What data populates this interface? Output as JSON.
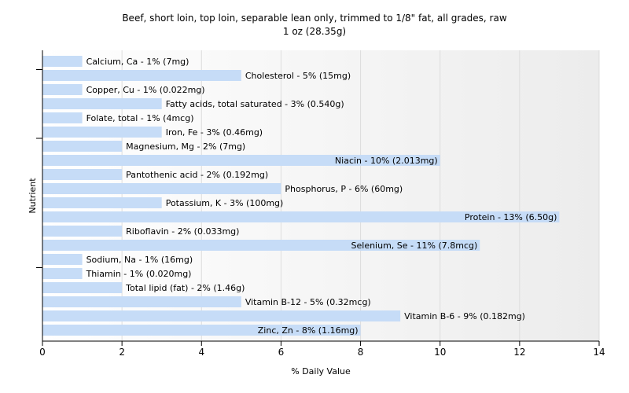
{
  "chart_data": {
    "type": "bar",
    "orientation": "horizontal",
    "title": "Beef, short loin, top loin, separable lean only, trimmed to 1/8\" fat, all grades, raw",
    "subtitle": "1 oz (28.35g)",
    "xlabel": "% Daily Value",
    "ylabel": "Nutrient",
    "xlim": [
      0,
      14
    ],
    "xticks": [
      0,
      2,
      4,
      6,
      8,
      10,
      12,
      14
    ],
    "grid": true,
    "bar_color": "#c6dcf7",
    "categories": [
      "Calcium, Ca",
      "Cholesterol",
      "Copper, Cu",
      "Fatty acids, total saturated",
      "Folate, total",
      "Iron, Fe",
      "Magnesium, Mg",
      "Niacin",
      "Pantothenic acid",
      "Phosphorus, P",
      "Potassium, K",
      "Protein",
      "Riboflavin",
      "Selenium, Se",
      "Sodium, Na",
      "Thiamin",
      "Total lipid (fat)",
      "Vitamin B-12",
      "Vitamin B-6",
      "Zinc, Zn"
    ],
    "values": [
      1,
      5,
      1,
      3,
      1,
      3,
      2,
      10,
      2,
      6,
      3,
      13,
      2,
      11,
      1,
      1,
      2,
      5,
      9,
      8
    ],
    "labels": [
      "Calcium, Ca - 1% (7mg)",
      "Cholesterol - 5% (15mg)",
      "Copper, Cu - 1% (0.022mg)",
      "Fatty acids, total saturated - 3% (0.540g)",
      "Folate, total - 1% (4mcg)",
      "Iron, Fe - 3% (0.46mg)",
      "Magnesium, Mg - 2% (7mg)",
      "Niacin - 10% (2.013mg)",
      "Pantothenic acid - 2% (0.192mg)",
      "Phosphorus, P - 6% (60mg)",
      "Potassium, K - 3% (100mg)",
      "Protein - 13% (6.50g)",
      "Riboflavin - 2% (0.033mg)",
      "Selenium, Se - 11% (7.8mcg)",
      "Sodium, Na - 1% (16mg)",
      "Thiamin - 1% (0.020mg)",
      "Total lipid (fat) - 2% (1.46g)",
      "Vitamin B-12 - 5% (0.32mcg)",
      "Vitamin B-6 - 9% (0.182mg)",
      "Zinc, Zn - 8% (1.16mg)"
    ],
    "inside_label_indices": [
      7,
      11,
      13,
      19
    ]
  }
}
